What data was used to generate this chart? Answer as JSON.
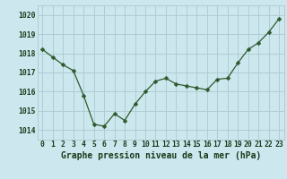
{
  "x": [
    0,
    1,
    2,
    3,
    4,
    5,
    6,
    7,
    8,
    9,
    10,
    11,
    12,
    13,
    14,
    15,
    16,
    17,
    18,
    19,
    20,
    21,
    22,
    23
  ],
  "y": [
    1018.2,
    1017.8,
    1017.4,
    1017.1,
    1015.8,
    1014.3,
    1014.2,
    1014.85,
    1014.5,
    1015.35,
    1016.0,
    1016.55,
    1016.7,
    1016.4,
    1016.3,
    1016.2,
    1016.1,
    1016.65,
    1016.7,
    1017.5,
    1018.2,
    1018.55,
    1019.1,
    1019.8
  ],
  "line_color": "#2d5a2d",
  "marker": "D",
  "marker_size": 2.5,
  "bg_color": "#cce8ee",
  "plot_bg_color": "#cce8ee",
  "grid_color": "#b0cdd4",
  "xlabel": "Graphe pression niveau de la mer (hPa)",
  "xlabel_color": "#1a3a1a",
  "xlabel_fontsize": 7.0,
  "tick_fontsize": 5.8,
  "ylim": [
    1013.5,
    1020.5
  ],
  "xlim": [
    -0.5,
    23.5
  ],
  "xtick_labels": [
    "0",
    "1",
    "2",
    "3",
    "4",
    "5",
    "6",
    "7",
    "8",
    "9",
    "10",
    "11",
    "12",
    "13",
    "14",
    "15",
    "16",
    "17",
    "18",
    "19",
    "20",
    "21",
    "22",
    "23"
  ]
}
